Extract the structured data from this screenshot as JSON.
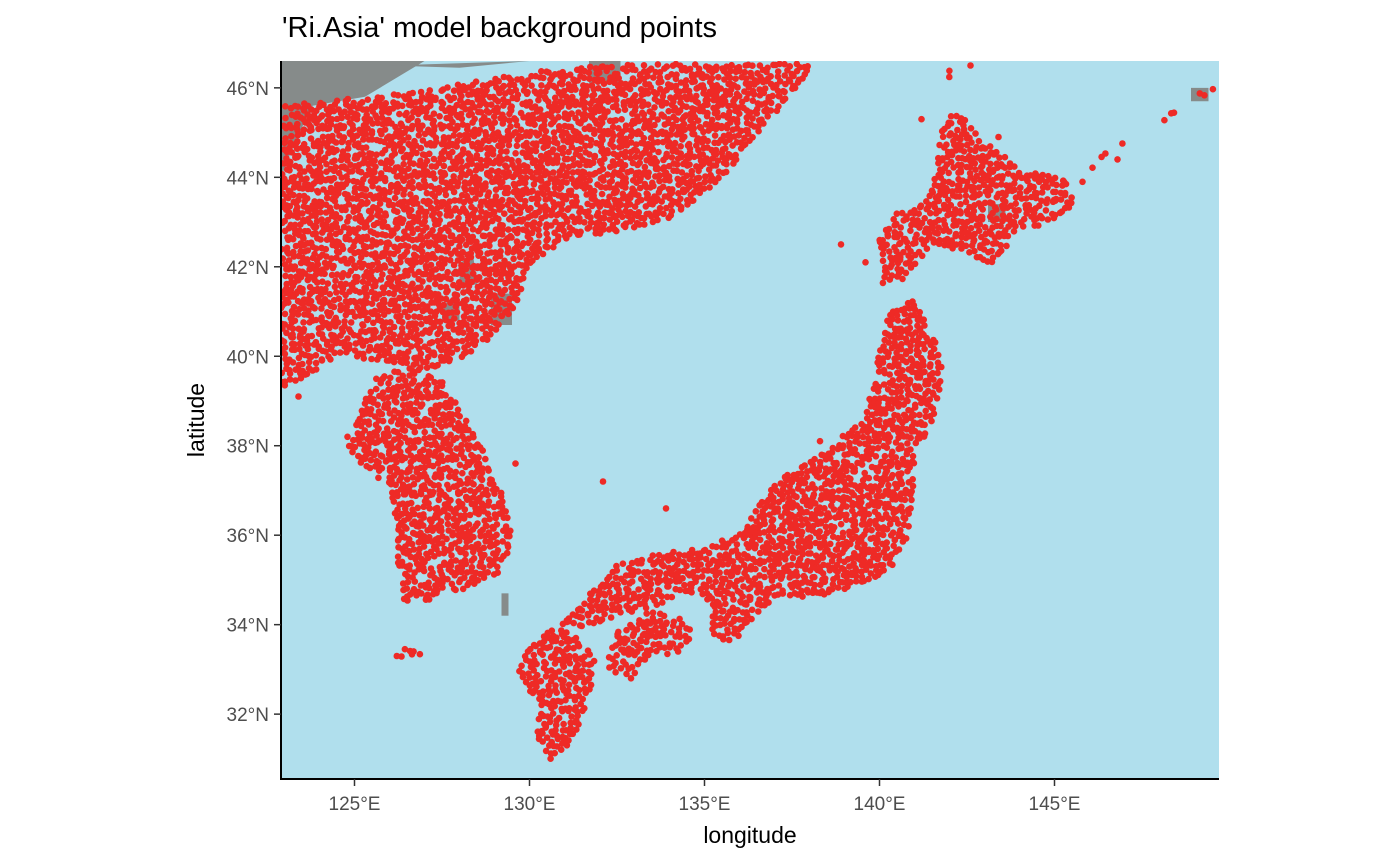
{
  "chart_data": {
    "type": "scatter",
    "title": "'Ri.Asia' model background points",
    "xlabel": "longitude",
    "ylabel": "latitude",
    "xlim": [
      122.9,
      149.7
    ],
    "ylim": [
      30.55,
      46.6
    ],
    "x_ticks": [
      125,
      130,
      135,
      140,
      145
    ],
    "x_tick_labels": [
      "125°E",
      "130°E",
      "135°E",
      "140°E",
      "145°E"
    ],
    "y_ticks": [
      32,
      34,
      36,
      38,
      40,
      42,
      44,
      46
    ],
    "y_tick_labels": [
      "32°N",
      "34°N",
      "36°N",
      "38°N",
      "40°N",
      "42°N",
      "44°N",
      "46°N"
    ],
    "layers": {
      "sea": "light blue background (sea)",
      "land_unsampled": "grey land cells",
      "points": "red background points"
    },
    "colors": {
      "sea": "#b0dfed",
      "land": "#868b8a",
      "points": "#ee2a26",
      "axis": "#000000"
    },
    "point_regions": [
      {
        "name": "mainland-asia",
        "coverage": "dense",
        "polygon": [
          [
            123.0,
            45.6
          ],
          [
            126.5,
            45.9
          ],
          [
            130.5,
            46.4
          ],
          [
            133.0,
            46.55
          ],
          [
            135.0,
            46.6
          ],
          [
            138.2,
            46.6
          ],
          [
            137.2,
            45.6
          ],
          [
            136.0,
            44.4
          ],
          [
            135.0,
            43.6
          ],
          [
            133.8,
            43.0
          ],
          [
            132.5,
            42.8
          ],
          [
            131.0,
            42.6
          ],
          [
            130.0,
            42.0
          ],
          [
            129.6,
            41.0
          ],
          [
            128.6,
            40.2
          ],
          [
            127.6,
            39.8
          ],
          [
            126.7,
            39.6
          ],
          [
            125.6,
            39.9
          ],
          [
            124.5,
            40.0
          ],
          [
            123.3,
            39.4
          ],
          [
            122.9,
            39.2
          ],
          [
            122.9,
            44.0
          ]
        ]
      },
      {
        "name": "korea",
        "coverage": "dense",
        "polygon": [
          [
            124.8,
            38.0
          ],
          [
            125.3,
            37.5
          ],
          [
            126.0,
            37.0
          ],
          [
            126.2,
            36.0
          ],
          [
            126.2,
            35.0
          ],
          [
            126.5,
            34.4
          ],
          [
            127.3,
            34.6
          ],
          [
            128.3,
            34.8
          ],
          [
            129.2,
            35.2
          ],
          [
            129.5,
            35.8
          ],
          [
            129.4,
            36.5
          ],
          [
            129.0,
            37.4
          ],
          [
            128.4,
            38.3
          ],
          [
            128.0,
            38.9
          ],
          [
            127.5,
            39.5
          ],
          [
            126.9,
            39.6
          ],
          [
            126.3,
            39.7
          ],
          [
            125.5,
            39.5
          ],
          [
            125.2,
            38.8
          ]
        ]
      },
      {
        "name": "jeju",
        "coverage": "dense",
        "polygon": [
          [
            126.2,
            33.3
          ],
          [
            126.5,
            33.2
          ],
          [
            126.9,
            33.3
          ],
          [
            126.8,
            33.5
          ],
          [
            126.4,
            33.5
          ]
        ]
      },
      {
        "name": "honshu",
        "coverage": "dense",
        "polygon": [
          [
            130.9,
            34.0
          ],
          [
            131.5,
            34.5
          ],
          [
            132.4,
            35.3
          ],
          [
            133.5,
            35.6
          ],
          [
            135.0,
            35.7
          ],
          [
            136.1,
            36.1
          ],
          [
            136.8,
            37.0
          ],
          [
            137.4,
            37.4
          ],
          [
            138.5,
            37.9
          ],
          [
            139.5,
            38.6
          ],
          [
            139.9,
            39.5
          ],
          [
            140.0,
            40.3
          ],
          [
            140.3,
            41.0
          ],
          [
            141.0,
            41.3
          ],
          [
            141.5,
            40.5
          ],
          [
            141.9,
            39.7
          ],
          [
            141.5,
            38.5
          ],
          [
            141.0,
            37.8
          ],
          [
            141.0,
            37.0
          ],
          [
            140.8,
            36.0
          ],
          [
            140.5,
            35.4
          ],
          [
            139.8,
            35.0
          ],
          [
            139.1,
            34.8
          ],
          [
            138.5,
            34.6
          ],
          [
            137.8,
            34.6
          ],
          [
            137.0,
            34.6
          ],
          [
            136.5,
            34.2
          ],
          [
            135.7,
            33.5
          ],
          [
            135.1,
            33.9
          ],
          [
            135.2,
            34.5
          ],
          [
            134.5,
            34.7
          ],
          [
            133.5,
            34.4
          ],
          [
            132.5,
            34.2
          ],
          [
            131.5,
            33.9
          ]
        ]
      },
      {
        "name": "shikoku",
        "coverage": "dense",
        "polygon": [
          [
            132.2,
            33.0
          ],
          [
            132.4,
            33.8
          ],
          [
            133.4,
            34.3
          ],
          [
            134.2,
            34.2
          ],
          [
            134.7,
            33.8
          ],
          [
            134.2,
            33.3
          ],
          [
            133.5,
            33.4
          ],
          [
            132.9,
            32.8
          ]
        ]
      },
      {
        "name": "kyushu",
        "coverage": "dense",
        "polygon": [
          [
            129.7,
            33.2
          ],
          [
            130.2,
            33.7
          ],
          [
            130.8,
            33.95
          ],
          [
            131.4,
            33.7
          ],
          [
            131.9,
            33.2
          ],
          [
            131.7,
            32.4
          ],
          [
            131.4,
            31.6
          ],
          [
            131.0,
            31.2
          ],
          [
            130.6,
            31.0
          ],
          [
            130.2,
            31.4
          ],
          [
            130.3,
            32.2
          ],
          [
            129.9,
            32.6
          ],
          [
            129.6,
            33.0
          ]
        ]
      },
      {
        "name": "hokkaido",
        "coverage": "dense",
        "polygon": [
          [
            140.0,
            41.6
          ],
          [
            140.0,
            42.6
          ],
          [
            140.5,
            43.2
          ],
          [
            141.3,
            43.4
          ],
          [
            141.6,
            44.1
          ],
          [
            141.8,
            45.2
          ],
          [
            142.2,
            45.5
          ],
          [
            143.0,
            44.8
          ],
          [
            144.0,
            44.2
          ],
          [
            145.3,
            44.0
          ],
          [
            145.6,
            43.3
          ],
          [
            144.8,
            43.0
          ],
          [
            143.8,
            42.7
          ],
          [
            143.3,
            42.0
          ],
          [
            142.5,
            42.3
          ],
          [
            141.5,
            42.5
          ],
          [
            141.0,
            42.0
          ],
          [
            140.6,
            41.6
          ]
        ]
      },
      {
        "name": "sakhalin-tip",
        "coverage": "sparse",
        "polygon": [
          [
            141.8,
            46.6
          ],
          [
            142.2,
            46.6
          ],
          [
            142.1,
            46.0
          ],
          [
            141.9,
            46.0
          ]
        ]
      },
      {
        "name": "kuril-islands",
        "coverage": "sparse",
        "polygon": [
          [
            145.9,
            44.3
          ],
          [
            147.5,
            45.0
          ],
          [
            149.0,
            45.9
          ],
          [
            149.7,
            46.0
          ],
          [
            149.7,
            45.8
          ],
          [
            148.8,
            45.6
          ],
          [
            147.3,
            44.7
          ],
          [
            146.0,
            44.1
          ]
        ]
      }
    ],
    "grey_land_patches": [
      [
        [
          122.9,
          44.0
        ],
        [
          122.9,
          46.6
        ],
        [
          127.0,
          46.6
        ],
        [
          125.3,
          45.8
        ],
        [
          123.8,
          45.6
        ],
        [
          123.3,
          44.8
        ]
      ],
      [
        [
          126.0,
          46.5
        ],
        [
          130.0,
          46.6
        ],
        [
          128.0,
          46.45
        ]
      ],
      [
        [
          128.0,
          41.6
        ],
        [
          128.5,
          41.6
        ],
        [
          128.4,
          42.2
        ],
        [
          128.0,
          42.1
        ]
      ],
      [
        [
          128.9,
          40.7
        ],
        [
          129.5,
          40.7
        ],
        [
          129.5,
          41.4
        ],
        [
          128.9,
          41.4
        ]
      ],
      [
        [
          127.5,
          40.8
        ],
        [
          128.0,
          40.8
        ],
        [
          128.0,
          41.2
        ],
        [
          127.5,
          41.2
        ]
      ],
      [
        [
          131.7,
          46.1
        ],
        [
          132.6,
          46.1
        ],
        [
          132.6,
          46.6
        ],
        [
          131.7,
          46.6
        ]
      ],
      [
        [
          129.2,
          34.2
        ],
        [
          129.4,
          34.2
        ],
        [
          129.4,
          34.7
        ],
        [
          129.2,
          34.7
        ]
      ],
      [
        [
          143.1,
          43.0
        ],
        [
          143.6,
          43.0
        ],
        [
          143.6,
          43.4
        ],
        [
          143.1,
          43.4
        ]
      ],
      [
        [
          148.9,
          45.7
        ],
        [
          149.4,
          45.7
        ],
        [
          149.4,
          46.0
        ],
        [
          148.9,
          46.0
        ]
      ]
    ],
    "scattered_points": [
      [
        123.4,
        39.1
      ],
      [
        127.7,
        40.2
      ],
      [
        124.8,
        38.2
      ],
      [
        127.2,
        36.3
      ],
      [
        137.3,
        37.3
      ],
      [
        138.3,
        38.1
      ],
      [
        140.8,
        39.0
      ],
      [
        141.5,
        43.7
      ],
      [
        141.2,
        45.3
      ],
      [
        143.4,
        44.9
      ],
      [
        145.8,
        43.9
      ],
      [
        146.8,
        44.4
      ],
      [
        142.6,
        46.5
      ],
      [
        129.6,
        37.6
      ],
      [
        132.1,
        37.2
      ],
      [
        133.9,
        36.6
      ],
      [
        138.9,
        42.5
      ],
      [
        139.6,
        42.1
      ]
    ]
  }
}
